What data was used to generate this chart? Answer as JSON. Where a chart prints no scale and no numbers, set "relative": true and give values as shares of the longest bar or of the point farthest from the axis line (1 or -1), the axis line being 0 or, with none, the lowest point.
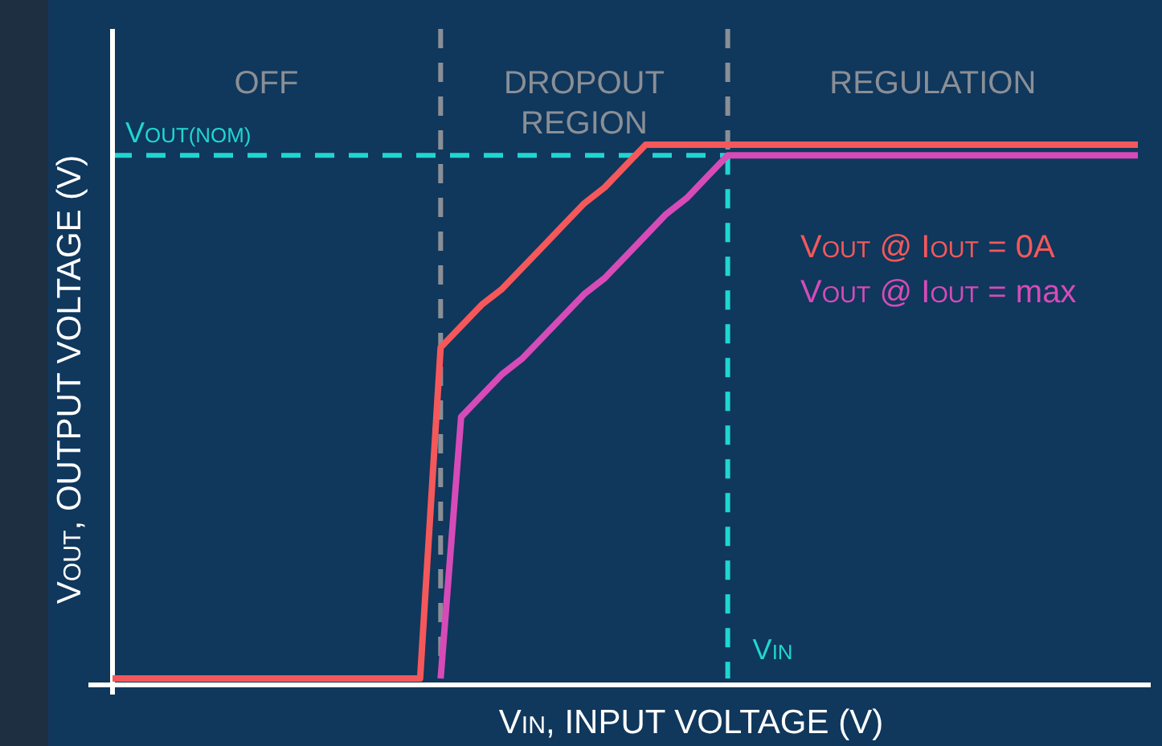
{
  "chart_data": {
    "type": "line",
    "relative": true,
    "xlabel": "V$_{IN}$, INPUT VOLTAGE (V)",
    "ylabel": "V$_{OUT}$, OUTPUT VOLTAGE (V)",
    "annotations": [
      "OFF",
      "DROPOUT\nREGION",
      "REGULATION",
      "V$_{IN}$"
    ],
    "categories": [
      null,
      null,
      null,
      null,
      null,
      null,
      null,
      null,
      null,
      null,
      null,
      null,
      null,
      null,
      null,
      null,
      null,
      null,
      null,
      null,
      null,
      null,
      null,
      null,
      null,
      null,
      null,
      null,
      null,
      null,
      null,
      null,
      null,
      null,
      null,
      null,
      null,
      null,
      null,
      null,
      null,
      null,
      null,
      null,
      null,
      null,
      null,
      null,
      null,
      null,
      null
    ],
    "series": [
      {
        "name": "V$_{OUT}$ @ I$_{OUT}$ = 0A",
        "color": "#f5585a",
        "values": [
          0,
          0,
          0,
          0,
          0,
          0,
          0,
          0,
          0,
          0,
          0,
          0,
          0,
          0,
          0,
          0,
          0.62,
          0.66,
          0.7,
          0.73,
          0.77,
          0.81,
          0.85,
          0.89,
          0.92,
          0.96,
          1,
          1,
          1,
          1,
          1,
          1,
          1,
          1,
          1,
          1,
          1,
          1,
          1,
          1,
          1,
          1,
          1,
          1,
          1,
          1,
          1,
          1,
          1,
          1,
          1
        ]
      },
      {
        "name": "V$_{OUT}$ @ I$_{OUT}$ = max",
        "color": "#d64bb8",
        "values": [
          null,
          null,
          null,
          null,
          null,
          null,
          null,
          null,
          null,
          null,
          null,
          null,
          null,
          null,
          null,
          null,
          0,
          0.49,
          0.53,
          0.57,
          0.6,
          0.64,
          0.68,
          0.72,
          0.75,
          0.79,
          0.83,
          0.87,
          0.9,
          0.94,
          0.98,
          0.98,
          0.98,
          0.98,
          0.98,
          0.98,
          0.98,
          0.98,
          0.98,
          0.98,
          0.98,
          0.98,
          0.98,
          0.98,
          0.98,
          0.98,
          0.98,
          0.98,
          0.98,
          0.98,
          0.98
        ]
      }
    ],
    "ref_lines": [
      {
        "axis": "y",
        "value": 0.98,
        "label": "V$_{OUT(NOM)}$",
        "color": "#20d6d0",
        "line_style": "dashed"
      }
    ],
    "marker": "none",
    "line_style": "solid"
  }
}
